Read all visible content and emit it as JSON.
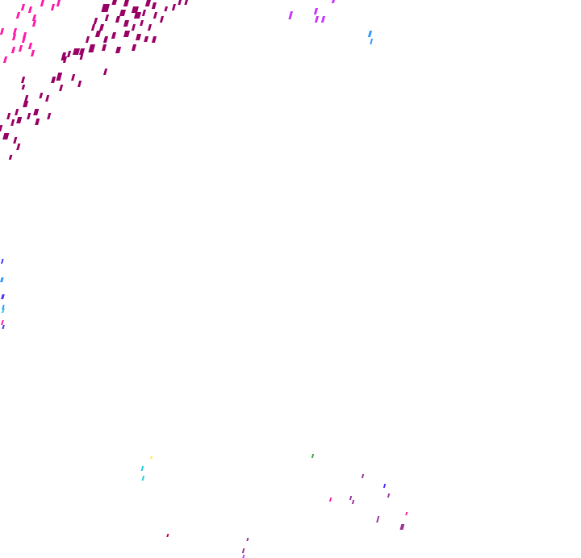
{
  "overlay": {
    "background": "#ffffff",
    "colors": {
      "dense_cluster": "#990066",
      "pink": "#ff1aa8",
      "violet": "#cc33ff",
      "blue": "#3399ff",
      "indigo": "#4433ff",
      "cyan": "#22ccdd",
      "green": "#33aa33",
      "yellow": "#ffee44",
      "purple": "#993399",
      "red": "#cc0033"
    }
  }
}
